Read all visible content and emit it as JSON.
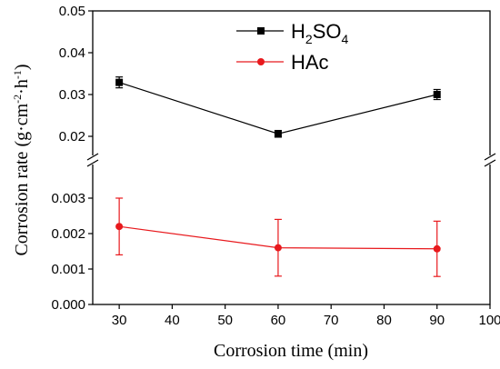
{
  "chart_data": {
    "type": "line",
    "title": "",
    "xlabel": "Corrosion time (min)",
    "ylabel_parts": [
      "Corrosion rate (g·cm",
      "-2",
      "·h",
      "-1",
      ")"
    ],
    "xlim": [
      25,
      100
    ],
    "x_ticks": [
      30,
      40,
      50,
      60,
      70,
      80,
      90,
      100
    ],
    "axis_break": true,
    "upper_panel": {
      "ylim": [
        0.015,
        0.05
      ],
      "y_ticks": [
        0.02,
        0.03,
        0.04,
        0.05
      ],
      "y_tick_labels": [
        "0.02",
        "0.03",
        "0.04",
        "0.05"
      ]
    },
    "lower_panel": {
      "ylim": [
        0,
        0.004
      ],
      "y_ticks": [
        0,
        0.001,
        0.002,
        0.003
      ],
      "y_tick_labels": [
        "0.000",
        "0.001",
        "0.002",
        "0.003"
      ]
    },
    "legend_position": "top-center",
    "grid": false,
    "series": [
      {
        "name_parts": [
          "H",
          "2",
          "SO",
          "4"
        ],
        "color": "#000000",
        "marker": "square",
        "panel": "upper",
        "x": [
          30,
          60,
          90
        ],
        "y": [
          0.0329,
          0.0206,
          0.03
        ],
        "err": [
          0.0013,
          0.0008,
          0.0012
        ]
      },
      {
        "name_parts": [
          "HAc"
        ],
        "color": "#e8191d",
        "marker": "circle",
        "panel": "lower",
        "x": [
          30,
          60,
          90
        ],
        "y": [
          0.0022,
          0.0016,
          0.00157
        ],
        "err": [
          0.0008,
          0.0008,
          0.00078
        ]
      }
    ]
  }
}
